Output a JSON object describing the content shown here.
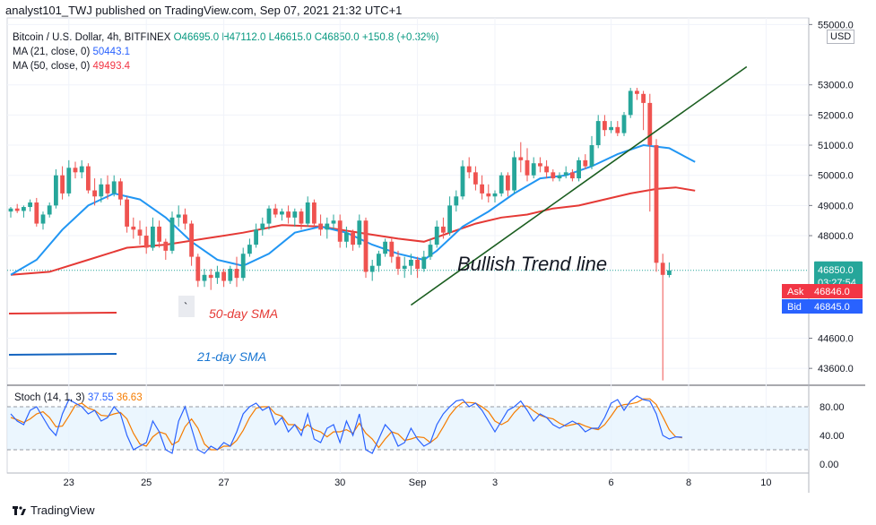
{
  "header": {
    "publisher": "analyst101_TWJ published on TradingView.com, Sep 07, 2021 21:32 UTC+1"
  },
  "legend": {
    "symbol": "Bitcoin / U.S. Dollar, 4h, BITFINEX",
    "open": "O46695.0",
    "high": "H47112.0",
    "low": "L46615.0",
    "close": "C46850.0",
    "change": "+150.8 (+0.32%)",
    "ma21_label": "MA (21, close, 0)",
    "ma21_value": "50443.1",
    "ma50_label": "MA (50, close, 0)",
    "ma50_value": "49493.4"
  },
  "currency": "USD",
  "colors": {
    "up": "#26a69a",
    "down": "#ef5350",
    "ma21": "#2196f3",
    "ma50": "#e53935",
    "trendline": "#1b5e20",
    "stoch_k": "#2962ff",
    "stoch_d": "#f57c00"
  },
  "annotations": {
    "trend_label": "Bullish Trend line",
    "sma50_label": "50-day SMA",
    "sma21_label": "21-day SMA",
    "tick_mark": "`"
  },
  "price_tags": {
    "last": "46850.0",
    "countdown": "03:27:54",
    "ask_label": "Ask",
    "ask": "46846.0",
    "bid_label": "Bid",
    "bid": "46845.0"
  },
  "stoch_legend": {
    "label": "Stoch (14, 1, 3)",
    "k": "37.55",
    "d": "36.63"
  },
  "footer": {
    "brand": "TradingView"
  },
  "chart_data": {
    "type": "candlestick",
    "symbol": "Bitcoin / U.S. Dollar",
    "interval": "4h",
    "x_ticks": [
      {
        "label": "23",
        "i": 9
      },
      {
        "label": "25",
        "i": 21
      },
      {
        "label": "27",
        "i": 33
      },
      {
        "label": "30",
        "i": 51
      },
      {
        "label": "Sep",
        "i": 63
      },
      {
        "label": "3",
        "i": 75
      },
      {
        "label": "6",
        "i": 93
      },
      {
        "label": "8",
        "i": 105
      },
      {
        "label": "10",
        "i": 117
      }
    ],
    "price_axis": {
      "ticks": [
        55000,
        53000,
        52000,
        51000,
        50000,
        49000,
        48000,
        44600,
        43600
      ],
      "tick_labels": [
        "55000.0",
        "53000.0",
        "52000.0",
        "51000.0",
        "50000.0",
        "49000.0",
        "48000.0",
        "44600.0",
        "43600.0"
      ],
      "range": [
        43100,
        55100
      ]
    },
    "candles": [
      [
        48800,
        48950,
        48600,
        48900
      ],
      [
        48900,
        49050,
        48750,
        48820
      ],
      [
        48820,
        49000,
        48600,
        48950
      ],
      [
        48950,
        49200,
        48800,
        49100
      ],
      [
        49100,
        49250,
        48300,
        48400
      ],
      [
        48400,
        48800,
        48200,
        48700
      ],
      [
        48700,
        49100,
        48600,
        49000
      ],
      [
        49000,
        50200,
        48900,
        50000
      ],
      [
        50000,
        50300,
        49200,
        49400
      ],
      [
        49400,
        50500,
        49300,
        50250
      ],
      [
        50250,
        50450,
        49900,
        50100
      ],
      [
        50100,
        50500,
        49900,
        50300
      ],
      [
        50300,
        50400,
        49400,
        49500
      ],
      [
        49500,
        49900,
        49000,
        49300
      ],
      [
        49300,
        49900,
        49100,
        49700
      ],
      [
        49700,
        50000,
        49200,
        49400
      ],
      [
        49400,
        50000,
        49300,
        49800
      ],
      [
        49800,
        49900,
        49000,
        49200
      ],
      [
        49200,
        49300,
        48100,
        48300
      ],
      [
        48300,
        48600,
        47900,
        48200
      ],
      [
        48200,
        48500,
        47700,
        48000
      ],
      [
        48000,
        48300,
        47400,
        47600
      ],
      [
        47600,
        48600,
        47500,
        48300
      ],
      [
        48300,
        48500,
        47600,
        47800
      ],
      [
        47800,
        47900,
        47200,
        47500
      ],
      [
        47500,
        48800,
        47400,
        48600
      ],
      [
        48600,
        49000,
        48300,
        48700
      ],
      [
        48700,
        48900,
        48200,
        48400
      ],
      [
        48400,
        48500,
        47000,
        47300
      ],
      [
        47300,
        47400,
        46300,
        46500
      ],
      [
        46500,
        46900,
        46300,
        46700
      ],
      [
        46700,
        46900,
        46200,
        46600
      ],
      [
        46600,
        47000,
        46400,
        46800
      ],
      [
        46800,
        46900,
        46300,
        46500
      ],
      [
        46500,
        47000,
        46400,
        46900
      ],
      [
        46900,
        47300,
        46300,
        46600
      ],
      [
        46600,
        47600,
        46500,
        47400
      ],
      [
        47400,
        47900,
        47300,
        47700
      ],
      [
        47700,
        48400,
        47600,
        48200
      ],
      [
        48200,
        48600,
        48000,
        48400
      ],
      [
        48400,
        49000,
        48200,
        48900
      ],
      [
        48900,
        49050,
        48600,
        48700
      ],
      [
        48700,
        48900,
        48500,
        48800
      ],
      [
        48800,
        49000,
        48400,
        48600
      ],
      [
        48600,
        48900,
        48300,
        48800
      ],
      [
        48800,
        48900,
        48200,
        48400
      ],
      [
        48400,
        49300,
        48300,
        49100
      ],
      [
        49100,
        49200,
        48300,
        48400
      ],
      [
        48400,
        48700,
        48000,
        48200
      ],
      [
        48200,
        48600,
        47900,
        48400
      ],
      [
        48400,
        48700,
        48200,
        48500
      ],
      [
        48500,
        48700,
        47600,
        47800
      ],
      [
        47800,
        48300,
        47600,
        48100
      ],
      [
        48100,
        48200,
        47500,
        47700
      ],
      [
        47700,
        48700,
        47600,
        48500
      ],
      [
        48500,
        48600,
        46600,
        46800
      ],
      [
        46800,
        47200,
        46500,
        47000
      ],
      [
        47000,
        47500,
        46800,
        47400
      ],
      [
        47400,
        47900,
        47300,
        47800
      ],
      [
        47800,
        47900,
        47100,
        47300
      ],
      [
        47300,
        47500,
        46700,
        46900
      ],
      [
        46900,
        47300,
        46600,
        47000
      ],
      [
        47000,
        47400,
        46700,
        47200
      ],
      [
        47200,
        47300,
        46600,
        46900
      ],
      [
        46900,
        47500,
        46800,
        47300
      ],
      [
        47300,
        47900,
        47200,
        47700
      ],
      [
        47700,
        48500,
        47600,
        48300
      ],
      [
        48300,
        48600,
        47900,
        48100
      ],
      [
        48100,
        49300,
        48000,
        49000
      ],
      [
        49000,
        49500,
        48800,
        49300
      ],
      [
        49300,
        50500,
        49200,
        50300
      ],
      [
        50300,
        50600,
        49900,
        50100
      ],
      [
        50100,
        50300,
        49500,
        49700
      ],
      [
        49700,
        50000,
        49200,
        49400
      ],
      [
        49400,
        49700,
        49100,
        49300
      ],
      [
        49300,
        49500,
        49100,
        49400
      ],
      [
        49400,
        50100,
        49300,
        50000
      ],
      [
        50000,
        50100,
        49300,
        49500
      ],
      [
        49500,
        50800,
        49400,
        50600
      ],
      [
        50600,
        51100,
        50100,
        50500
      ],
      [
        50500,
        50900,
        49800,
        50000
      ],
      [
        50000,
        50600,
        49900,
        50400
      ],
      [
        50400,
        50600,
        50100,
        50300
      ],
      [
        50300,
        50500,
        49900,
        50100
      ],
      [
        50100,
        50200,
        49800,
        49900
      ],
      [
        49900,
        50100,
        49800,
        50000
      ],
      [
        50000,
        50300,
        49900,
        50100
      ],
      [
        50100,
        50200,
        49800,
        49900
      ],
      [
        49900,
        50600,
        49800,
        50500
      ],
      [
        50500,
        50700,
        50200,
        50300
      ],
      [
        50300,
        51300,
        50200,
        51000
      ],
      [
        51000,
        52000,
        50900,
        51800
      ],
      [
        51800,
        52000,
        51300,
        51500
      ],
      [
        51500,
        51800,
        51400,
        51600
      ],
      [
        51600,
        51800,
        51300,
        51400
      ],
      [
        51400,
        52100,
        51300,
        52000
      ],
      [
        52000,
        52900,
        51900,
        52800
      ],
      [
        52800,
        52900,
        52500,
        52700
      ],
      [
        52700,
        52800,
        51500,
        52400
      ],
      [
        52400,
        52700,
        48800,
        51000
      ],
      [
        51000,
        51200,
        46800,
        47100
      ],
      [
        47100,
        47400,
        43200,
        46700
      ],
      [
        46695,
        47112,
        46615,
        46850
      ]
    ],
    "ma21": [
      [
        0,
        46700
      ],
      [
        4,
        47200
      ],
      [
        8,
        48200
      ],
      [
        12,
        49000
      ],
      [
        16,
        49400
      ],
      [
        20,
        49200
      ],
      [
        24,
        48600
      ],
      [
        28,
        47800
      ],
      [
        32,
        47200
      ],
      [
        36,
        47000
      ],
      [
        40,
        47400
      ],
      [
        44,
        48100
      ],
      [
        48,
        48300
      ],
      [
        52,
        48100
      ],
      [
        56,
        47700
      ],
      [
        60,
        47400
      ],
      [
        64,
        47200
      ],
      [
        66,
        47500
      ],
      [
        70,
        48300
      ],
      [
        74,
        48800
      ],
      [
        78,
        49400
      ],
      [
        82,
        49900
      ],
      [
        86,
        50000
      ],
      [
        90,
        50300
      ],
      [
        94,
        50700
      ],
      [
        98,
        51000
      ],
      [
        102,
        50900
      ],
      [
        106,
        50443
      ]
    ],
    "ma50": [
      [
        0,
        46700
      ],
      [
        6,
        46800
      ],
      [
        12,
        47200
      ],
      [
        18,
        47600
      ],
      [
        24,
        47700
      ],
      [
        30,
        47900
      ],
      [
        36,
        48100
      ],
      [
        42,
        48350
      ],
      [
        48,
        48300
      ],
      [
        54,
        48100
      ],
      [
        60,
        47900
      ],
      [
        64,
        47800
      ],
      [
        68,
        48100
      ],
      [
        72,
        48400
      ],
      [
        76,
        48600
      ],
      [
        80,
        48700
      ],
      [
        84,
        48900
      ],
      [
        88,
        49000
      ],
      [
        92,
        49200
      ],
      [
        96,
        49400
      ],
      [
        100,
        49550
      ],
      [
        103,
        49600
      ],
      [
        106,
        49493
      ]
    ],
    "trend_line": {
      "from": [
        62,
        45700
      ],
      "to": [
        114,
        53600
      ]
    },
    "last_price": 46850,
    "stoch": {
      "label": "Stoch (14, 1, 3)",
      "levels": [
        80,
        20
      ],
      "tick_labels": [
        "80.00",
        "40.00",
        "0.00"
      ],
      "k": [
        70,
        60,
        55,
        75,
        80,
        65,
        50,
        40,
        70,
        90,
        85,
        80,
        70,
        75,
        60,
        65,
        80,
        70,
        40,
        20,
        25,
        30,
        60,
        45,
        20,
        15,
        60,
        80,
        50,
        20,
        15,
        25,
        20,
        30,
        25,
        45,
        70,
        80,
        85,
        75,
        80,
        55,
        65,
        45,
        55,
        40,
        70,
        35,
        30,
        50,
        55,
        30,
        60,
        40,
        70,
        20,
        15,
        35,
        55,
        45,
        25,
        30,
        50,
        35,
        25,
        30,
        55,
        70,
        80,
        88,
        90,
        80,
        85,
        75,
        60,
        45,
        60,
        75,
        80,
        88,
        75,
        60,
        70,
        65,
        55,
        50,
        55,
        60,
        55,
        45,
        50,
        50,
        65,
        85,
        90,
        75,
        88,
        95,
        90,
        88,
        70,
        40,
        35,
        38,
        37.55
      ],
      "d": [
        65,
        62,
        58,
        63,
        70,
        73,
        65,
        52,
        53,
        67,
        82,
        85,
        78,
        75,
        68,
        67,
        70,
        72,
        63,
        43,
        28,
        25,
        38,
        45,
        42,
        27,
        32,
        52,
        63,
        50,
        28,
        20,
        20,
        25,
        25,
        33,
        47,
        65,
        78,
        80,
        80,
        70,
        67,
        55,
        55,
        47,
        55,
        48,
        45,
        38,
        45,
        45,
        48,
        43,
        57,
        43,
        35,
        23,
        35,
        45,
        42,
        33,
        35,
        38,
        37,
        30,
        37,
        52,
        68,
        79,
        86,
        86,
        85,
        80,
        73,
        60,
        55,
        60,
        72,
        81,
        81,
        74,
        68,
        65,
        63,
        57,
        53,
        55,
        57,
        53,
        50,
        48,
        55,
        67,
        80,
        83,
        84,
        86,
        91,
        91,
        83,
        66,
        48,
        38,
        36.63
      ]
    }
  }
}
